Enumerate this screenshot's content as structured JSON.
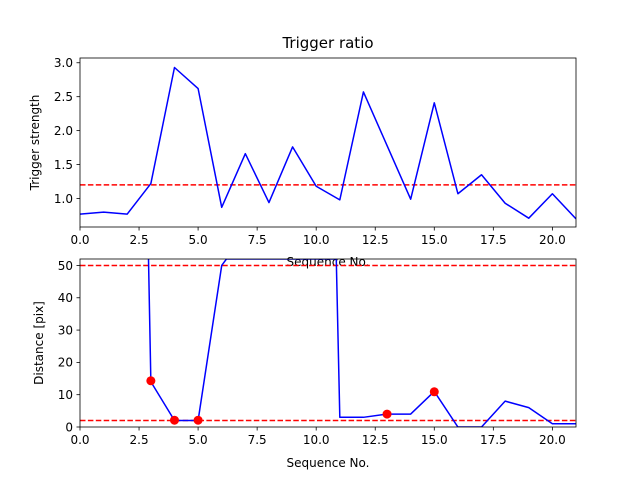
{
  "chart_data": [
    {
      "type": "line",
      "title": "Trigger ratio",
      "xlabel": "Sequence No.",
      "ylabel": "Trigger strength",
      "xlim": [
        0,
        21
      ],
      "ylim": [
        0.58,
        3.07
      ],
      "xticks": [
        "0.0",
        "2.5",
        "5.0",
        "7.5",
        "10.0",
        "12.5",
        "15.0",
        "17.5",
        "20.0"
      ],
      "yticks": [
        "1.0",
        "1.5",
        "2.0",
        "2.5",
        "3.0"
      ],
      "grid": false,
      "series": [
        {
          "color": "#0000ff",
          "x": [
            0,
            1,
            2,
            3,
            4,
            5,
            6,
            7,
            8,
            9,
            10,
            11,
            12,
            13,
            14,
            15,
            16,
            17,
            18,
            19,
            20,
            21
          ],
          "y": [
            0.77,
            0.8,
            0.77,
            1.22,
            2.93,
            2.62,
            0.87,
            1.66,
            0.94,
            1.76,
            1.18,
            0.98,
            2.57,
            1.78,
            0.99,
            2.41,
            1.07,
            1.35,
            0.93,
            0.71,
            1.07,
            0.7
          ]
        }
      ],
      "hlines": [
        {
          "y": 1.2,
          "color": "#ff0000",
          "style": "dashed"
        }
      ]
    },
    {
      "type": "line",
      "title": "",
      "xlabel": "Sequence No.",
      "ylabel": "Distance [pix]",
      "xlim": [
        0,
        21
      ],
      "ylim": [
        0,
        52
      ],
      "xticks": [
        "0.0",
        "2.5",
        "5.0",
        "7.5",
        "10.0",
        "12.5",
        "15.0",
        "17.5",
        "20.0"
      ],
      "yticks": [
        "0",
        "10",
        "20",
        "30",
        "40",
        "50"
      ],
      "grid": false,
      "series": [
        {
          "color": "#0000ff",
          "x": [
            2.9,
            3,
            4,
            5,
            6,
            6.2,
            10.85,
            11,
            12,
            13,
            14,
            15,
            16,
            17,
            18,
            19,
            20,
            21
          ],
          "y": [
            52,
            14,
            2,
            2,
            50,
            52,
            52,
            3,
            3,
            4,
            4,
            11,
            0,
            0,
            8,
            6,
            1,
            1
          ]
        }
      ],
      "markers": {
        "color": "#ff0000",
        "x": [
          3,
          4,
          5,
          13,
          15
        ],
        "y": [
          14.3,
          2.1,
          2.1,
          4.0,
          10.9
        ]
      },
      "hlines": [
        {
          "y": 50,
          "color": "#ff0000",
          "style": "dashed"
        },
        {
          "y": 2,
          "color": "#ff0000",
          "style": "dashed"
        }
      ]
    }
  ]
}
